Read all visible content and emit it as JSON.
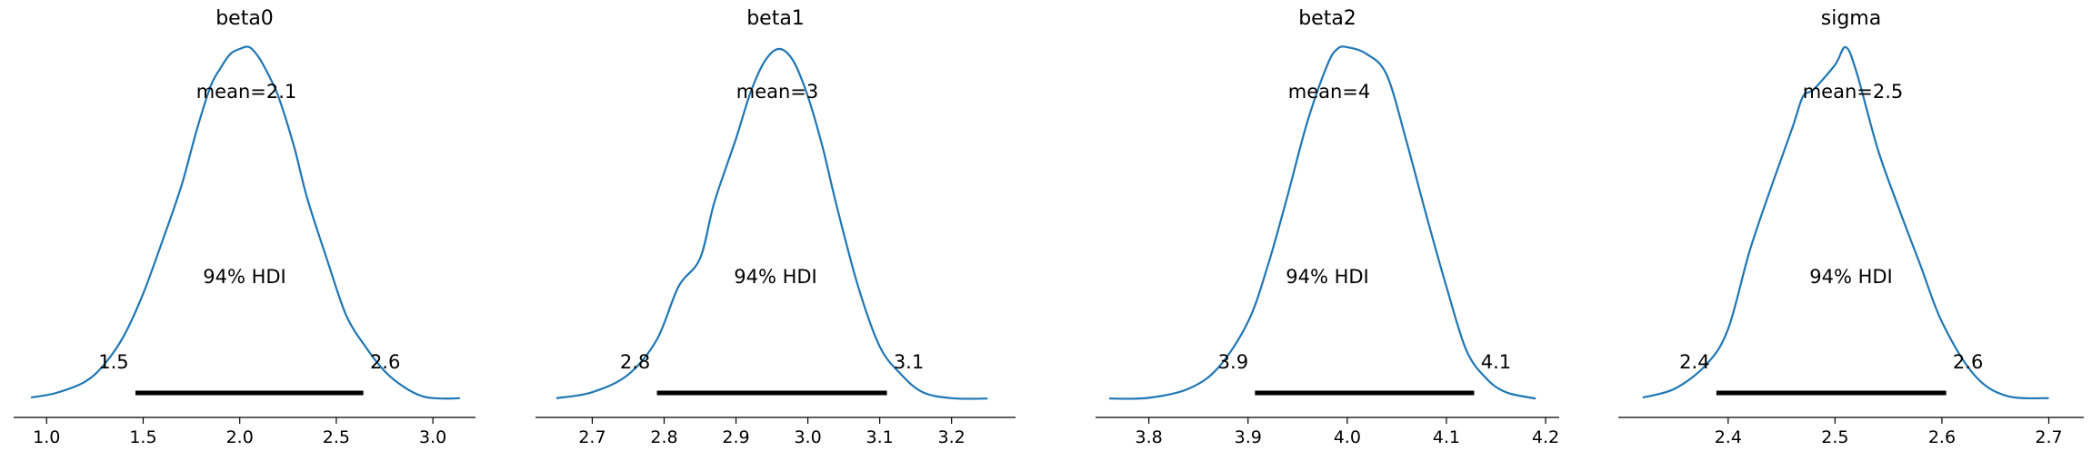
{
  "chart_data": [
    {
      "type": "area",
      "title": "beta0",
      "xlim": [
        0.9,
        3.15
      ],
      "xticks": [
        1.0,
        1.5,
        2.0,
        2.5,
        3.0
      ],
      "xtick_labels": [
        "1.0",
        "1.5",
        "2.0",
        "2.5",
        "3.0"
      ],
      "mean_label": "mean=2.1",
      "hdi_label": "94% HDI",
      "hdi": [
        1.46,
        2.64
      ],
      "hdi_low_label": "1.5",
      "hdi_high_label": "2.6",
      "line_color": "#1f77b4",
      "density": {
        "x": [
          0.92,
          1.05,
          1.2,
          1.3,
          1.4,
          1.5,
          1.6,
          1.7,
          1.78,
          1.85,
          1.9,
          1.95,
          2.0,
          2.05,
          2.1,
          2.15,
          2.2,
          2.28,
          2.35,
          2.45,
          2.55,
          2.65,
          2.75,
          2.85,
          2.95,
          3.05,
          3.14
        ],
        "y": [
          0.005,
          0.018,
          0.05,
          0.1,
          0.18,
          0.3,
          0.45,
          0.61,
          0.77,
          0.89,
          0.94,
          0.98,
          0.995,
          1.0,
          0.97,
          0.92,
          0.86,
          0.72,
          0.57,
          0.4,
          0.24,
          0.15,
          0.08,
          0.035,
          0.008,
          0.002,
          0.003
        ]
      }
    },
    {
      "type": "area",
      "title": "beta1",
      "xlim": [
        2.64,
        3.27
      ],
      "xticks": [
        2.7,
        2.8,
        2.9,
        3.0,
        3.1,
        3.2
      ],
      "xtick_labels": [
        "2.7",
        "2.8",
        "2.9",
        "3.0",
        "3.1",
        "3.2"
      ],
      "mean_label": "mean=3",
      "hdi_label": "94% HDI",
      "hdi": [
        2.79,
        3.11
      ],
      "hdi_low_label": "2.8",
      "hdi_high_label": "3.1",
      "line_color": "#1f77b4",
      "density": {
        "x": [
          2.65,
          2.7,
          2.75,
          2.79,
          2.82,
          2.85,
          2.87,
          2.9,
          2.92,
          2.94,
          2.96,
          2.98,
          3.0,
          3.02,
          3.04,
          3.07,
          3.1,
          3.13,
          3.16,
          3.2,
          3.25
        ],
        "y": [
          0.003,
          0.02,
          0.07,
          0.17,
          0.32,
          0.4,
          0.56,
          0.74,
          0.87,
          0.96,
          0.995,
          0.96,
          0.86,
          0.72,
          0.55,
          0.32,
          0.15,
          0.07,
          0.02,
          0.003,
          0.002
        ]
      }
    },
    {
      "type": "area",
      "title": "beta2",
      "xlim": [
        3.76,
        4.2
      ],
      "xticks": [
        3.8,
        3.9,
        4.0,
        4.1,
        4.2
      ],
      "xtick_labels": [
        "3.8",
        "3.9",
        "4.0",
        "4.1",
        "4.2"
      ],
      "mean_label": "mean=4",
      "hdi_label": "94% HDI",
      "hdi": [
        3.907,
        4.128
      ],
      "hdi_low_label": "3.9",
      "hdi_high_label": "4.1",
      "line_color": "#1f77b4",
      "density": {
        "x": [
          3.76,
          3.8,
          3.84,
          3.87,
          3.9,
          3.92,
          3.94,
          3.96,
          3.98,
          3.99,
          4.0,
          4.02,
          4.04,
          4.06,
          4.08,
          4.1,
          4.12,
          4.14,
          4.16,
          4.19
        ],
        "y": [
          0.002,
          0.004,
          0.03,
          0.09,
          0.22,
          0.38,
          0.58,
          0.79,
          0.95,
          0.995,
          1.0,
          0.98,
          0.92,
          0.73,
          0.52,
          0.32,
          0.14,
          0.06,
          0.02,
          0.002
        ]
      }
    },
    {
      "type": "area",
      "title": "sigma",
      "xlim": [
        2.31,
        2.72
      ],
      "xticks": [
        2.4,
        2.5,
        2.6,
        2.7
      ],
      "xtick_labels": [
        "2.4",
        "2.5",
        "2.6",
        "2.7"
      ],
      "mean_label": "mean=2.5",
      "hdi_label": "94% HDI",
      "hdi": [
        2.389,
        2.604
      ],
      "hdi_low_label": "2.4",
      "hdi_high_label": "2.6",
      "line_color": "#1f77b4",
      "density": {
        "x": [
          2.32,
          2.35,
          2.38,
          2.4,
          2.42,
          2.44,
          2.46,
          2.47,
          2.48,
          2.5,
          2.51,
          2.52,
          2.54,
          2.56,
          2.58,
          2.6,
          2.63,
          2.66,
          2.7
        ],
        "y": [
          0.005,
          0.03,
          0.1,
          0.2,
          0.42,
          0.6,
          0.77,
          0.86,
          0.88,
          0.95,
          1.0,
          0.93,
          0.71,
          0.54,
          0.38,
          0.22,
          0.07,
          0.01,
          0.003
        ]
      }
    }
  ]
}
